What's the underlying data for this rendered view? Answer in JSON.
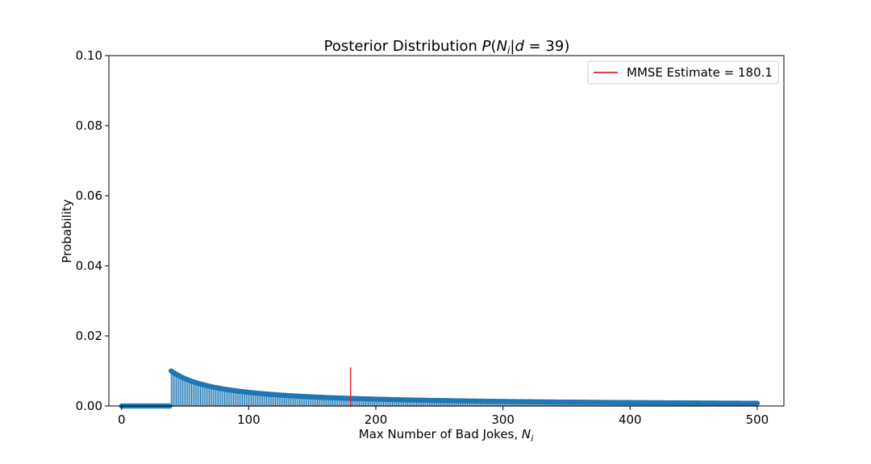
{
  "chart_data": {
    "type": "stem",
    "title": "Posterior Distribution P(N_i | d = 39)",
    "title_parts": {
      "prefix": "Posterior Distribution ",
      "P": "P",
      "open": "(",
      "N": "N",
      "sub": "i",
      "bar": "|",
      "d": "d",
      "eq": " = 39)"
    },
    "xlabel": "Max Number of Bad Jokes, N_i",
    "xlabel_parts": {
      "text": "Max Number of Bad Jokes, ",
      "N": "N",
      "sub": "i"
    },
    "ylabel": "Probability",
    "xlim": [
      -10,
      521
    ],
    "ylim": [
      0,
      0.1
    ],
    "xticks": [
      0,
      100,
      200,
      300,
      400,
      500
    ],
    "yticks": [
      0.0,
      0.02,
      0.04,
      0.06,
      0.08,
      0.1
    ],
    "ytick_labels": [
      "0.00",
      "0.02",
      "0.04",
      "0.06",
      "0.08",
      "0.10"
    ],
    "xtick_labels": [
      "0",
      "100",
      "200",
      "300",
      "400",
      "500"
    ],
    "stems": {
      "x_range": [
        0,
        500
      ],
      "d": 39,
      "formula": "P(N) = 0 for N < 39; P(N) = 1 / (N * sum_{k=39}^{500} 1/k) for 39 <= N <= 500",
      "peak_value_at_39": 0.00985,
      "value_at_500": 0.00077
    },
    "mmse": {
      "x": 180.1,
      "height": 0.011,
      "label": "MMSE Estimate = 180.1"
    },
    "legend": {
      "position": "top-right",
      "entries": [
        "MMSE Estimate = 180.1"
      ]
    },
    "colors": {
      "stem": "#1f77b4",
      "marker": "#1f77b4",
      "mmse": "#d62728",
      "axes": "#000000"
    },
    "grid": false
  }
}
